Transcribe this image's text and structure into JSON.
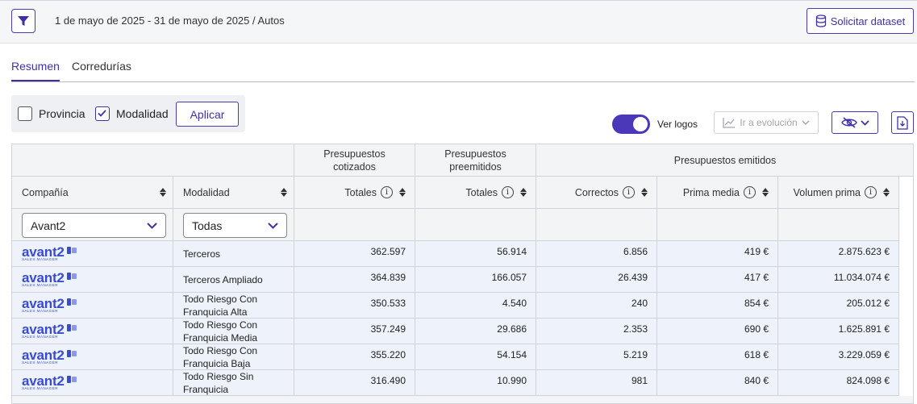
{
  "topbar": {
    "breadcrumb": "1 de mayo de 2025 - 31 de mayo de 2025 / Autos",
    "dataset_button": "Solicitar dataset"
  },
  "tabs": [
    {
      "label": "Resumen",
      "active": true
    },
    {
      "label": "Corredurías",
      "active": false
    }
  ],
  "options": {
    "provincia_label": "Provincia",
    "provincia_checked": false,
    "modalidad_label": "Modalidad",
    "modalidad_checked": true,
    "apply_label": "Aplicar"
  },
  "toolbar": {
    "logos_label": "Ver logos",
    "logos_on": true,
    "evolution_label": "Ir a evolución"
  },
  "table": {
    "groups": {
      "cotizados": "Presupuestos cotizados",
      "preemitidos": "Presupuestos preemitidos",
      "emitidos": "Presupuestos emitidos"
    },
    "columns": {
      "compania": "Compañía",
      "modalidad": "Modalidad",
      "cot_totales": "Totales",
      "pre_totales": "Totales",
      "correctos": "Correctos",
      "prima_media": "Prima media",
      "volumen_prima": "Volumen prima"
    },
    "filters": {
      "compania": "Avant2",
      "modalidad": "Todas"
    },
    "logo": {
      "text": "avant2",
      "sub": "SALES MANAGER"
    },
    "rows": [
      {
        "modalidad": "Terceros",
        "cot": "362.597",
        "pre": "56.914",
        "cor": "6.856",
        "prima": "419 €",
        "vol": "2.875.623 €"
      },
      {
        "modalidad": "Terceros Ampliado",
        "cot": "364.839",
        "pre": "166.057",
        "cor": "26.439",
        "prima": "417 €",
        "vol": "11.034.074 €"
      },
      {
        "modalidad": "Todo Riesgo Con Franquicia Alta",
        "cot": "350.533",
        "pre": "4.540",
        "cor": "240",
        "prima": "854 €",
        "vol": "205.012 €"
      },
      {
        "modalidad": "Todo Riesgo Con Franquicia Media",
        "cot": "357.249",
        "pre": "29.686",
        "cor": "2.353",
        "prima": "690 €",
        "vol": "1.625.891 €"
      },
      {
        "modalidad": "Todo Riesgo Con Franquicia Baja",
        "cot": "355.220",
        "pre": "54.154",
        "cor": "5.219",
        "prima": "618 €",
        "vol": "3.229.059 €"
      },
      {
        "modalidad": "Todo Riesgo Sin Franquicia",
        "cot": "316.490",
        "pre": "10.990",
        "cor": "981",
        "prima": "840 €",
        "vol": "824.098 €"
      }
    ]
  },
  "colors": {
    "accent": "#3f30a8",
    "row_bg": "#eef2fa",
    "header_bg": "#f3f4f6"
  }
}
